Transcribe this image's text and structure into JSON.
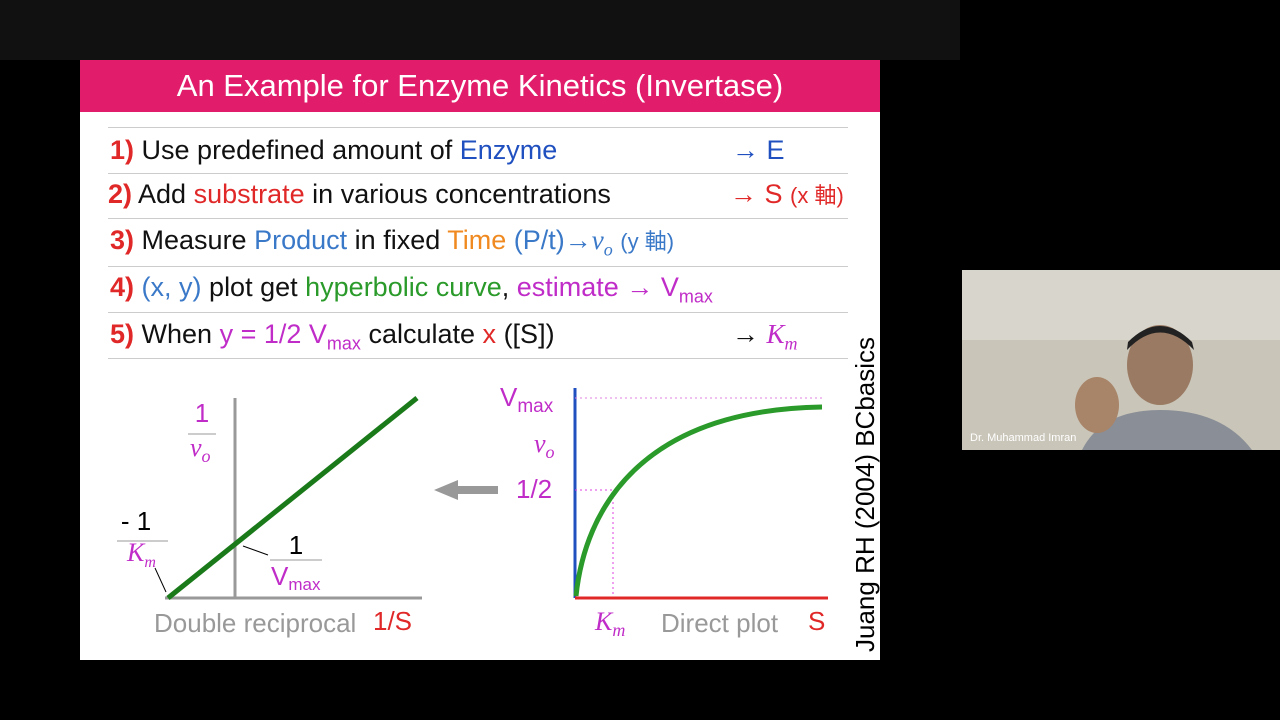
{
  "slide": {
    "title": "An Example for Enzyme Kinetics (Invertase)",
    "steps": [
      [
        "1)",
        "Use predefined amount of",
        "Enzyme",
        "→ E"
      ],
      [
        "2)",
        "Add",
        "substrate",
        "in various concentrations",
        "→ S",
        "(x 軸)"
      ],
      [
        "3)",
        "Measure",
        "Product",
        "in fixed",
        "Time",
        "(P/t)→",
        "v",
        "o",
        "(y 軸)"
      ],
      [
        "4)",
        "(x, y)",
        "plot get",
        "hyperbolic curve",
        ",",
        "estimate",
        "→ V",
        "max"
      ],
      [
        "5)",
        "When",
        "y = 1/2 V",
        "max",
        "calculate",
        "x",
        "([S])",
        "→",
        "K",
        "m"
      ]
    ],
    "double_reciprocal": {
      "y_num": "1",
      "y_den": "v",
      "y_den_sub": "o",
      "x_int_num": "- 1",
      "x_int_den": "K",
      "x_int_den_sub": "m",
      "y_int_num": "1",
      "y_int_den": "V",
      "y_int_den_sub": "max",
      "caption": "Double reciprocal",
      "x_label": "1/S"
    },
    "direct_plot": {
      "vmax": "V",
      "vmax_sub": "max",
      "y_label": "v",
      "y_label_sub": "o",
      "half": "1/2",
      "km": "K",
      "km_sub": "m",
      "caption": "Direct plot",
      "x_label": "S"
    },
    "credit": "Juang RH (2004) BCbasics"
  },
  "webcam": {
    "name": "Dr. Muhammad Imran"
  }
}
